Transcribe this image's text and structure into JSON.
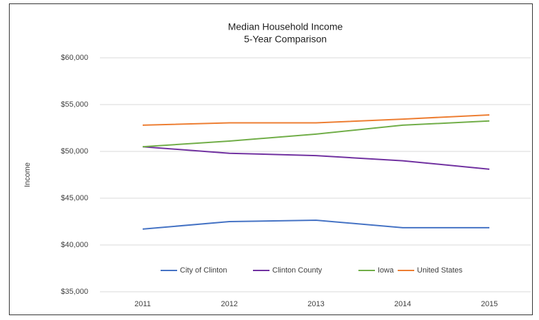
{
  "chart_data": {
    "type": "line",
    "title": "Median Household Income",
    "subtitle": "5-Year Comparison",
    "y_label": "Income",
    "categories": [
      "2011",
      "2012",
      "2013",
      "2014",
      "2015"
    ],
    "series": [
      {
        "name": "City of Clinton",
        "color": "#4472c4",
        "values": [
          41700,
          42500,
          42650,
          41850,
          41850
        ]
      },
      {
        "name": "Clinton County",
        "color": "#7030a0",
        "values": [
          50500,
          49800,
          49550,
          49000,
          48100
        ]
      },
      {
        "name": "Iowa",
        "color": "#70ad47",
        "values": [
          50500,
          51100,
          51850,
          52800,
          53250
        ]
      },
      {
        "name": "United States",
        "color": "#ed7d31",
        "values": [
          52800,
          53050,
          53050,
          53450,
          53900
        ]
      }
    ],
    "ylim": [
      35000,
      60000
    ],
    "yticks": [
      {
        "value": 35000,
        "label": "$35,000"
      },
      {
        "value": 40000,
        "label": "$40,000"
      },
      {
        "value": 45000,
        "label": "$45,000"
      },
      {
        "value": 50000,
        "label": "$50,000"
      },
      {
        "value": 55000,
        "label": "$55,000"
      },
      {
        "value": 60000,
        "label": "$60,000"
      }
    ],
    "grid": true,
    "legend": "bottom"
  }
}
